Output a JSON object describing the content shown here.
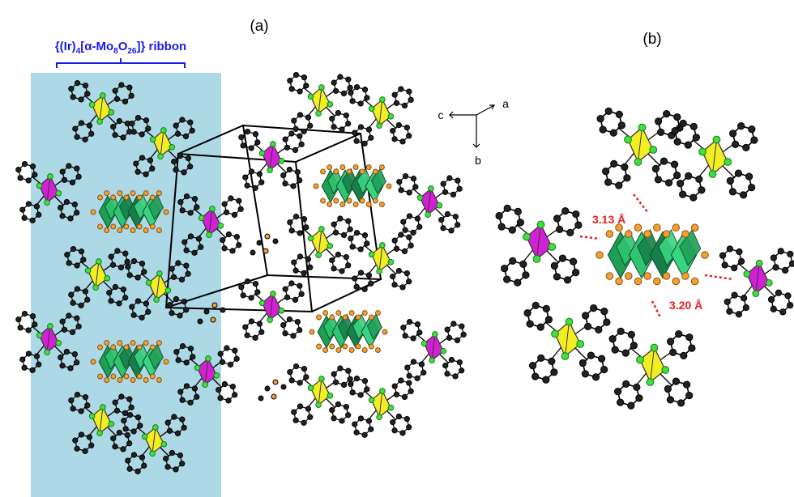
{
  "panel_a": "(a)",
  "panel_b": "(b)",
  "ribbon_label": [
    "{(Ir)",
    "4",
    "[α-Mo",
    "8",
    "O",
    "26",
    "]} ribbon"
  ],
  "axes": {
    "c": "c",
    "a": "a",
    "b": "b"
  },
  "distances": [
    "3.13 Å",
    "3.20 Å"
  ]
}
